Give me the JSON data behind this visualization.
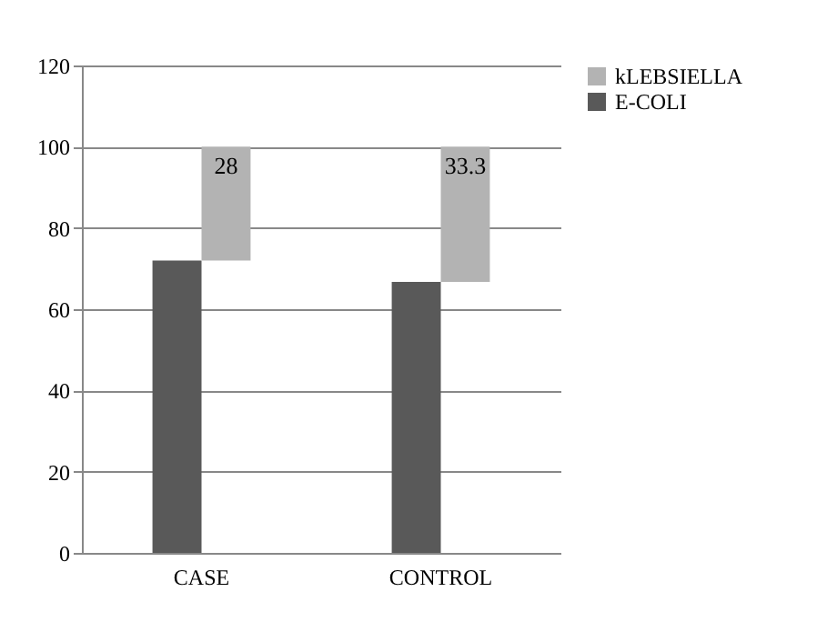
{
  "chart_data": {
    "type": "bar",
    "categories": [
      "CASE",
      "CONTROL"
    ],
    "series": [
      {
        "name": "E-COLI",
        "color": "#595959",
        "values": [
          72,
          66.7
        ]
      },
      {
        "name": "kLEBSIELLA",
        "color": "#b3b3b3",
        "values": [
          28,
          33.3
        ],
        "base": [
          72,
          66.7
        ],
        "value_labels": [
          "28",
          "33.3"
        ]
      }
    ],
    "ylim": [
      0,
      120
    ],
    "yticks": [
      0,
      20,
      40,
      60,
      80,
      100,
      120
    ],
    "grid": "y",
    "legend": "right"
  }
}
